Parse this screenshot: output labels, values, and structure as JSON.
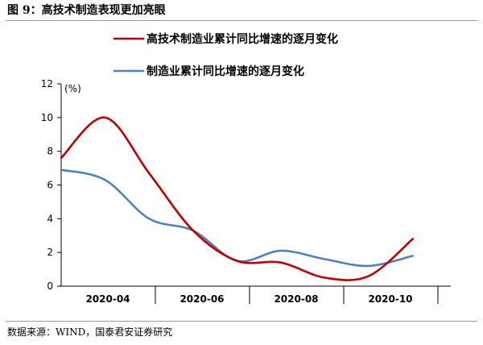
{
  "figure": {
    "title": "图 9：高技术制造表现更加亮眼",
    "source": "数据来源：WIND，国泰君安证券研究"
  },
  "chart_data": {
    "type": "line",
    "title": "",
    "xlabel": "",
    "ylabel": "(%)",
    "ylim": [
      0,
      12
    ],
    "y_ticks": [
      0,
      2,
      4,
      6,
      8,
      10,
      12
    ],
    "x_ticks": [
      "2020-04",
      "2020-06",
      "2020-08",
      "2020-10"
    ],
    "x": [
      "2020-03",
      "2020-04",
      "2020-05",
      "2020-06",
      "2020-07",
      "2020-08",
      "2020-09",
      "2020-10",
      "2020-11"
    ],
    "grid": false,
    "legend_position": "top",
    "series": [
      {
        "name": "高技术制造业累计同比增速的逐月变化",
        "color": "#c00000",
        "values": [
          7.6,
          10.0,
          6.7,
          3.3,
          1.5,
          1.4,
          0.5,
          0.6,
          2.8
        ]
      },
      {
        "name": "制造业累计同比增速的逐月变化",
        "color": "#4f81bd",
        "values": [
          6.9,
          6.3,
          4.0,
          3.3,
          1.5,
          2.1,
          1.6,
          1.2,
          1.8
        ]
      }
    ]
  }
}
